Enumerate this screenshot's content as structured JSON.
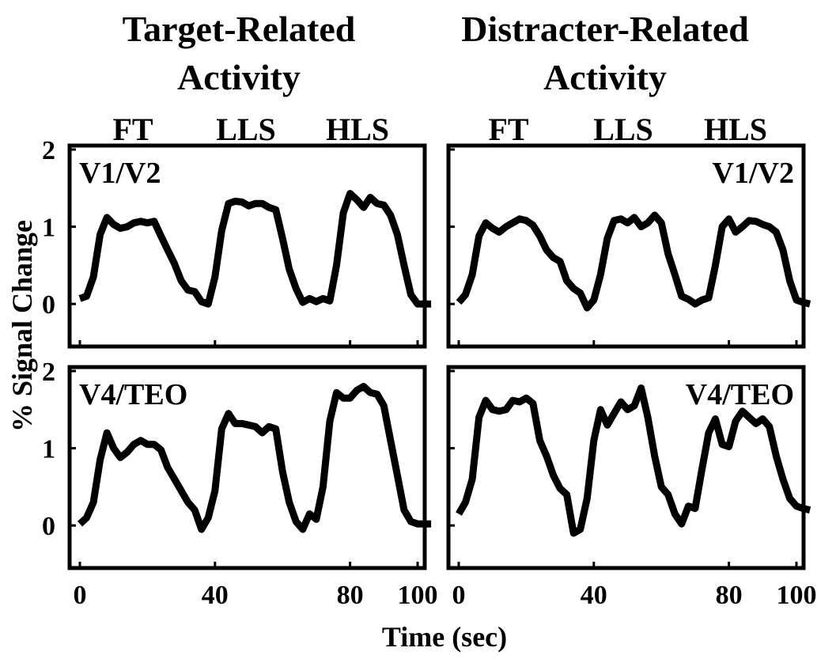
{
  "columns": [
    {
      "title_lines": [
        "Target-Related",
        "Activity"
      ]
    },
    {
      "title_lines": [
        "Distracter-Related",
        "Activity"
      ]
    }
  ],
  "conditions": [
    "FT",
    "LLS",
    "HLS"
  ],
  "colors": {
    "trace": "#000000",
    "background": "#ffffff"
  },
  "chart_data": [
    {
      "type": "line",
      "title": "Target-Related Activity",
      "region": "V1/V2",
      "xlabel": "Time (sec)",
      "ylabel": "% Signal Change",
      "xlim": [
        -2,
        100
      ],
      "ylim": [
        -0.5,
        2
      ],
      "xticks": [
        0,
        40,
        80,
        100
      ],
      "yticks": [
        0,
        1,
        2
      ],
      "series": [
        {
          "x": [
            0,
            2,
            4,
            6,
            8,
            10,
            12,
            14,
            16,
            18,
            20,
            22,
            24,
            26,
            28,
            30,
            32,
            34,
            36,
            38,
            40,
            42,
            44,
            46,
            48,
            50,
            52,
            54,
            56,
            58,
            60,
            62,
            64,
            66,
            68,
            70,
            72,
            74,
            76,
            78,
            80,
            82,
            84,
            86,
            88,
            90,
            92,
            94,
            96,
            98,
            100,
            102,
            104
          ],
          "values": [
            0.07,
            0.1,
            0.35,
            0.9,
            1.12,
            1.03,
            0.98,
            1.0,
            1.05,
            1.07,
            1.05,
            1.07,
            0.88,
            0.7,
            0.52,
            0.3,
            0.18,
            0.16,
            0.03,
            0.0,
            0.35,
            0.95,
            1.3,
            1.33,
            1.32,
            1.27,
            1.3,
            1.3,
            1.25,
            1.22,
            0.85,
            0.45,
            0.2,
            0.02,
            0.07,
            0.03,
            0.07,
            0.04,
            0.5,
            1.18,
            1.43,
            1.35,
            1.25,
            1.38,
            1.3,
            1.28,
            1.15,
            0.9,
            0.5,
            0.12,
            0.0,
            0.0,
            0.0
          ]
        }
      ]
    },
    {
      "type": "line",
      "title": "Distracter-Related Activity",
      "region": "V1/V2",
      "xlabel": "Time (sec)",
      "ylabel": "% Signal Change",
      "xlim": [
        -2,
        100
      ],
      "ylim": [
        -0.5,
        2
      ],
      "xticks": [
        0,
        40,
        80,
        100
      ],
      "yticks": [
        0,
        1,
        2
      ],
      "series": [
        {
          "x": [
            0,
            2,
            4,
            6,
            8,
            10,
            12,
            14,
            16,
            18,
            20,
            22,
            24,
            26,
            28,
            30,
            32,
            34,
            36,
            38,
            40,
            42,
            44,
            46,
            48,
            50,
            52,
            54,
            56,
            58,
            60,
            62,
            64,
            66,
            68,
            70,
            72,
            74,
            76,
            78,
            80,
            82,
            84,
            86,
            88,
            90,
            92,
            94,
            96,
            98,
            100,
            102,
            104
          ],
          "values": [
            0.02,
            0.12,
            0.38,
            0.88,
            1.05,
            0.98,
            0.93,
            1.0,
            1.05,
            1.1,
            1.08,
            1.02,
            0.88,
            0.7,
            0.6,
            0.55,
            0.3,
            0.2,
            0.14,
            -0.05,
            0.05,
            0.38,
            0.85,
            1.08,
            1.1,
            1.05,
            1.12,
            1.0,
            1.05,
            1.15,
            1.05,
            0.65,
            0.38,
            0.1,
            0.06,
            0.0,
            0.05,
            0.08,
            0.5,
            1.0,
            1.1,
            0.93,
            1.0,
            1.08,
            1.07,
            1.03,
            1.0,
            0.93,
            0.7,
            0.3,
            0.05,
            0.02,
            0.0
          ]
        }
      ]
    },
    {
      "type": "line",
      "title": "Target-Related Activity",
      "region": "V4/TEO",
      "xlabel": "Time (sec)",
      "ylabel": "% Signal Change",
      "xlim": [
        -2,
        100
      ],
      "ylim": [
        -0.5,
        2
      ],
      "xticks": [
        0,
        40,
        80,
        100
      ],
      "yticks": [
        0,
        1,
        2
      ],
      "series": [
        {
          "x": [
            0,
            2,
            4,
            6,
            8,
            10,
            12,
            14,
            16,
            18,
            20,
            22,
            24,
            26,
            28,
            30,
            32,
            34,
            36,
            38,
            40,
            42,
            44,
            46,
            48,
            50,
            52,
            54,
            56,
            58,
            60,
            62,
            64,
            66,
            68,
            70,
            72,
            74,
            76,
            78,
            80,
            82,
            84,
            86,
            88,
            90,
            92,
            94,
            96,
            98,
            100,
            102,
            104
          ],
          "values": [
            0.02,
            0.1,
            0.3,
            0.85,
            1.2,
            1.0,
            0.88,
            0.95,
            1.05,
            1.1,
            1.05,
            1.05,
            0.98,
            0.75,
            0.6,
            0.45,
            0.3,
            0.2,
            -0.05,
            0.1,
            0.45,
            1.25,
            1.45,
            1.32,
            1.32,
            1.3,
            1.28,
            1.2,
            1.28,
            1.25,
            0.7,
            0.3,
            0.05,
            -0.05,
            0.15,
            0.08,
            0.5,
            1.35,
            1.72,
            1.65,
            1.65,
            1.75,
            1.8,
            1.72,
            1.7,
            1.55,
            1.1,
            0.65,
            0.2,
            0.05,
            0.02,
            0.02,
            0.02
          ]
        }
      ]
    },
    {
      "type": "line",
      "title": "Distracter-Related Activity",
      "region": "V4/TEO",
      "xlabel": "Time (sec)",
      "ylabel": "% Signal Change",
      "xlim": [
        -2,
        100
      ],
      "ylim": [
        -0.5,
        2
      ],
      "xticks": [
        0,
        40,
        80,
        100
      ],
      "yticks": [
        0,
        1,
        2
      ],
      "series": [
        {
          "x": [
            0,
            2,
            4,
            6,
            8,
            10,
            12,
            14,
            16,
            18,
            20,
            22,
            24,
            26,
            28,
            30,
            32,
            34,
            36,
            38,
            40,
            42,
            44,
            46,
            48,
            50,
            52,
            54,
            56,
            58,
            60,
            62,
            64,
            66,
            68,
            70,
            72,
            74,
            76,
            78,
            80,
            82,
            84,
            86,
            88,
            90,
            92,
            94,
            96,
            98,
            100,
            102,
            104
          ],
          "values": [
            0.15,
            0.3,
            0.6,
            1.4,
            1.62,
            1.5,
            1.48,
            1.5,
            1.62,
            1.6,
            1.65,
            1.58,
            1.1,
            0.9,
            0.65,
            0.48,
            0.4,
            -0.1,
            -0.05,
            0.35,
            1.1,
            1.5,
            1.3,
            1.45,
            1.6,
            1.5,
            1.55,
            1.78,
            1.4,
            0.9,
            0.5,
            0.4,
            0.15,
            0.02,
            0.25,
            0.22,
            0.72,
            1.2,
            1.38,
            1.05,
            1.02,
            1.35,
            1.48,
            1.4,
            1.32,
            1.38,
            1.28,
            0.9,
            0.6,
            0.35,
            0.25,
            0.22,
            0.2
          ]
        }
      ]
    }
  ],
  "axes": {
    "xlabel": "Time (sec)",
    "ylabel": "% Signal Change"
  }
}
